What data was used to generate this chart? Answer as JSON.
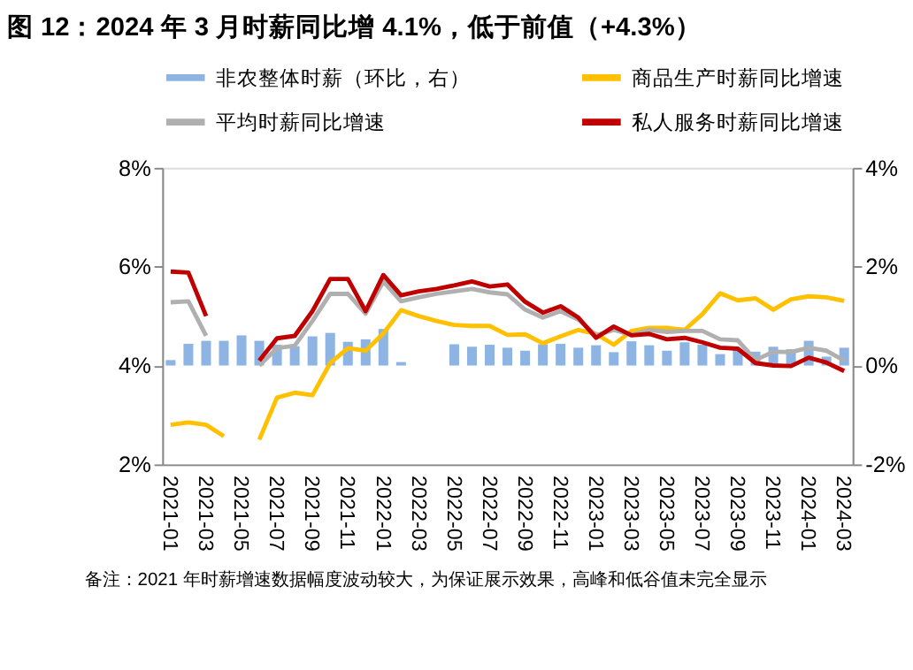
{
  "chart_data": {
    "type": "line",
    "title": "图 12：2024 年 3 月时薪同比增 4.1%，低于前值（+4.3%）",
    "categories": [
      "2021-01",
      null,
      "2021-03",
      null,
      "2021-05",
      null,
      "2021-07",
      null,
      "2021-09",
      null,
      "2021-11",
      null,
      "2022-01",
      null,
      "2022-03",
      null,
      "2022-05",
      null,
      "2022-07",
      null,
      "2022-09",
      null,
      "2022-11",
      null,
      "2023-01",
      null,
      "2023-03",
      null,
      "2023-05",
      null,
      "2023-07",
      null,
      "2023-09",
      null,
      "2023-11",
      null,
      "2024-01",
      null,
      "2024-03"
    ],
    "series": [
      {
        "name": "非农整体时薪（环比，右）",
        "type": "bar",
        "axis": "y2",
        "color": "#8db4e2",
        "values": [
          0.11,
          0.44,
          0.5,
          0.5,
          0.61,
          0.5,
          0.42,
          0.39,
          0.59,
          0.66,
          0.48,
          0.53,
          0.74,
          0.07,
          null,
          null,
          0.43,
          0.38,
          0.42,
          0.36,
          0.3,
          0.43,
          0.44,
          0.36,
          0.41,
          0.27,
          0.49,
          0.41,
          0.3,
          0.47,
          0.42,
          0.23,
          0.33,
          0.28,
          0.38,
          0.33,
          0.5,
          0.18,
          0.36
        ]
      },
      {
        "name": "商品生产时薪同比增速",
        "color": "#ffc000",
        "values": [
          2.8,
          2.85,
          2.8,
          2.57,
          null,
          2.5,
          3.35,
          3.45,
          3.4,
          4.05,
          4.35,
          4.3,
          4.65,
          5.12,
          5.0,
          4.9,
          4.82,
          4.8,
          4.8,
          4.62,
          4.63,
          4.45,
          4.59,
          4.72,
          4.64,
          4.42,
          4.7,
          4.76,
          4.76,
          4.72,
          5.04,
          5.46,
          5.32,
          5.36,
          5.13,
          5.34,
          5.4,
          5.38,
          5.31
        ]
      },
      {
        "name": "平均时薪同比增速",
        "color": "#b0b0b0",
        "values": [
          5.28,
          5.3,
          4.6,
          null,
          null,
          4.0,
          4.35,
          4.4,
          4.9,
          5.45,
          5.45,
          5.05,
          5.7,
          5.3,
          5.38,
          5.45,
          5.5,
          5.55,
          5.48,
          5.44,
          5.13,
          4.97,
          5.1,
          4.93,
          4.61,
          4.72,
          4.62,
          4.72,
          4.68,
          4.7,
          4.7,
          4.53,
          4.51,
          4.11,
          4.28,
          4.27,
          4.36,
          4.3,
          4.1
        ]
      },
      {
        "name": "私人服务时薪同比增速",
        "color": "#c00000",
        "values": [
          5.9,
          5.88,
          5.0,
          null,
          null,
          4.1,
          4.55,
          4.6,
          5.1,
          5.75,
          5.75,
          5.1,
          5.83,
          5.42,
          5.5,
          5.55,
          5.62,
          5.7,
          5.6,
          5.64,
          5.29,
          5.07,
          5.2,
          4.97,
          4.56,
          4.79,
          4.61,
          4.64,
          4.53,
          4.56,
          4.47,
          4.36,
          4.34,
          4.05,
          4.0,
          3.99,
          4.16,
          4.06,
          3.89
        ]
      }
    ],
    "ylim": [
      2,
      8
    ],
    "yticks": [
      {
        "value": 2,
        "label": "2%"
      },
      {
        "value": 4,
        "label": "4%"
      },
      {
        "value": 6,
        "label": "6%"
      },
      {
        "value": 8,
        "label": "8%"
      }
    ],
    "y2lim": [
      -2,
      4
    ],
    "y2ticks": [
      {
        "value": -2,
        "label": "-2%"
      },
      {
        "value": 0,
        "label": "0%"
      },
      {
        "value": 2,
        "label": "2%"
      },
      {
        "value": 4,
        "label": "4%"
      }
    ],
    "grid": false,
    "legend": "top",
    "line_style": "solid",
    "marker": "none",
    "annotations": [
      "备注：2021 年时薪增速数据幅度波动较大，为保证展示效果，高峰和低谷值未完全显示"
    ]
  }
}
